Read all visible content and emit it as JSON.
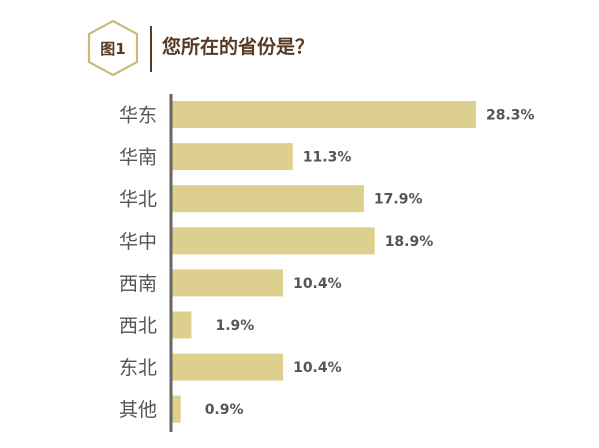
{
  "header": {
    "badge": "图1",
    "title": "您所在的省份是？"
  },
  "colors": {
    "bar": "#DDD08E",
    "axis": "#666666",
    "label": "#555555",
    "value": "#555555",
    "brand": "#5a3a22",
    "hex_stroke": "#C9BB7A"
  },
  "chart_data": {
    "type": "bar",
    "orientation": "horizontal",
    "title": "您所在的省份是？",
    "categories": [
      "华东",
      "华南",
      "华北",
      "华中",
      "西南",
      "西北",
      "东北",
      "其他"
    ],
    "values": [
      28.3,
      11.3,
      17.9,
      18.9,
      10.4,
      1.9,
      10.4,
      0.9
    ],
    "value_labels": [
      "28.3%",
      "11.3%",
      "17.9%",
      "18.9%",
      "10.4%",
      "1.9%",
      "10.4%",
      "0.9%"
    ],
    "unit": "%",
    "xlim": [
      0,
      28.3
    ],
    "grid": false,
    "legend": "none"
  }
}
